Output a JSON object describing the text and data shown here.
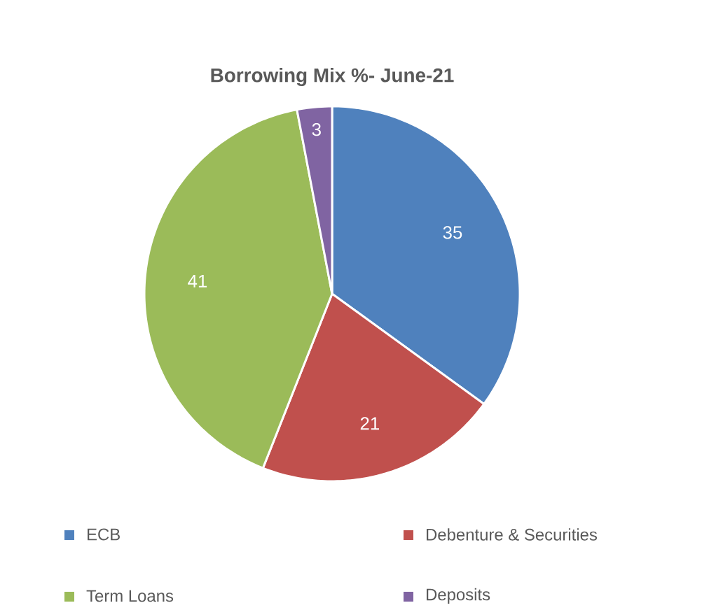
{
  "chart_data": {
    "type": "pie",
    "title": "Borrowing Mix  %- June-21",
    "categories": [
      "ECB",
      "Debenture & Securities",
      "Term Loans",
      "Deposits"
    ],
    "values": [
      35,
      21,
      41,
      3
    ],
    "colors": [
      "#4f81bd",
      "#c0504d",
      "#9bbb59",
      "#8064a2"
    ],
    "data_labels": true,
    "legend": "bottom"
  }
}
